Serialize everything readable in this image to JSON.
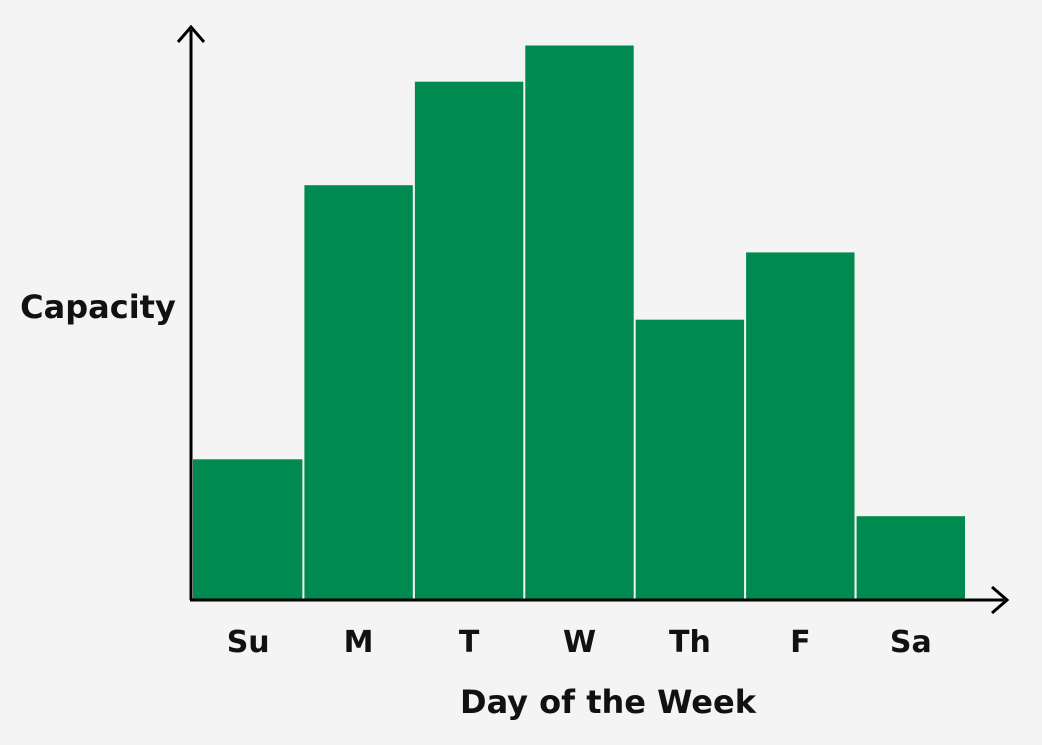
{
  "chart_data": {
    "type": "bar",
    "title": "",
    "xlabel": "Day of the Week",
    "ylabel": "Capacity",
    "categories": [
      "Su",
      "M",
      "T",
      "W",
      "Th",
      "F",
      "Sa"
    ],
    "values": [
      2.7,
      8.0,
      10.0,
      10.7,
      5.4,
      6.7,
      1.6
    ],
    "ylim": [
      0,
      11
    ],
    "y_ticks_shown": false,
    "grid": false,
    "bar_color": "#008a4f",
    "background_color": "#f4f4f4",
    "axis_color": "#000000"
  }
}
